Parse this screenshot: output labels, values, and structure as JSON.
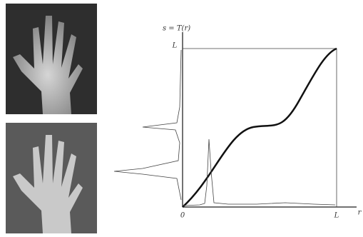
{
  "figure": {
    "y_axis_label": "s = T(r)",
    "y_max_label": "L",
    "origin_label": "0",
    "x_max_label": "L",
    "x_axis_label": "r"
  }
}
